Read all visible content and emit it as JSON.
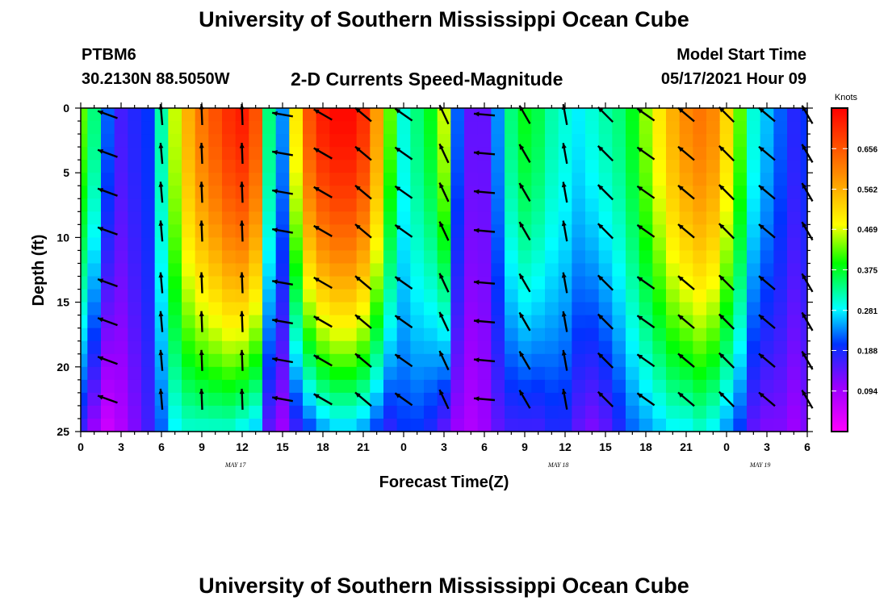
{
  "header": {
    "title": "University of Southern Mississippi Ocean Cube",
    "station_id": "PTBM6",
    "coordinates": "30.2130N  88.5050W",
    "plot_title": "2-D Currents Speed-Magnitude",
    "model_start_label": "Model Start Time",
    "model_start_value": "05/17/2021 Hour 09"
  },
  "footer": {
    "title": "University of Southern Mississippi Ocean Cube"
  },
  "chart_data": {
    "type": "heatmap",
    "title": "2-D Currents Speed-Magnitude",
    "xlabel": "Forecast Time(Z)",
    "ylabel": "Depth (ft)",
    "x_range_hours": [
      0,
      54
    ],
    "ylim": [
      0,
      25
    ],
    "x_ticks": [
      {
        "hour": 0,
        "label": "0"
      },
      {
        "hour": 3,
        "label": "3"
      },
      {
        "hour": 6,
        "label": "6"
      },
      {
        "hour": 9,
        "label": "9"
      },
      {
        "hour": 12,
        "label": "12"
      },
      {
        "hour": 15,
        "label": "15"
      },
      {
        "hour": 18,
        "label": "18"
      },
      {
        "hour": 21,
        "label": "21"
      },
      {
        "hour": 24,
        "label": "0"
      },
      {
        "hour": 27,
        "label": "3"
      },
      {
        "hour": 30,
        "label": "6"
      },
      {
        "hour": 33,
        "label": "9"
      },
      {
        "hour": 36,
        "label": "12"
      },
      {
        "hour": 39,
        "label": "15"
      },
      {
        "hour": 42,
        "label": "18"
      },
      {
        "hour": 45,
        "label": "21"
      },
      {
        "hour": 48,
        "label": "0"
      },
      {
        "hour": 51,
        "label": "3"
      },
      {
        "hour": 54,
        "label": "6"
      }
    ],
    "y_ticks": [
      {
        "depth": 0,
        "label": "0"
      },
      {
        "depth": 5,
        "label": "5"
      },
      {
        "depth": 10,
        "label": "10"
      },
      {
        "depth": 15,
        "label": "15"
      },
      {
        "depth": 20,
        "label": "20"
      },
      {
        "depth": 25,
        "label": "25"
      }
    ],
    "date_labels": [
      {
        "hour": 11.5,
        "label": "MAY 17"
      },
      {
        "hour": 35.5,
        "label": "MAY 18"
      },
      {
        "hour": 50.5,
        "label": "MAY 19"
      }
    ],
    "colorbar": {
      "units": "Knots",
      "min": 0.0,
      "max": 0.75,
      "ticks": [
        0.094,
        0.188,
        0.281,
        0.375,
        0.469,
        0.562,
        0.656
      ],
      "tick_labels": [
        "0.094",
        "0.188",
        "0.281",
        "0.375",
        "0.469",
        "0.562",
        "0.656"
      ]
    },
    "speed_profile": {
      "description": "Approximate current speed (knots) per forecast hour: surface value, bottom value",
      "hours": [
        0,
        1,
        2,
        3,
        4,
        5,
        6,
        7,
        8,
        9,
        10,
        11,
        12,
        13,
        14,
        15,
        16,
        17,
        18,
        19,
        20,
        21,
        22,
        23,
        24,
        25,
        26,
        27,
        28,
        29,
        30,
        31,
        32,
        33,
        34,
        35,
        36,
        37,
        38,
        39,
        40,
        41,
        42,
        43,
        44,
        45,
        46,
        47,
        48,
        49,
        50,
        51,
        52,
        53,
        54
      ],
      "surface": [
        0.42,
        0.34,
        0.22,
        0.16,
        0.18,
        0.2,
        0.32,
        0.46,
        0.56,
        0.62,
        0.66,
        0.7,
        0.72,
        0.66,
        0.34,
        0.24,
        0.5,
        0.66,
        0.72,
        0.74,
        0.74,
        0.7,
        0.58,
        0.42,
        0.3,
        0.34,
        0.38,
        0.46,
        0.22,
        0.14,
        0.14,
        0.24,
        0.34,
        0.38,
        0.36,
        0.32,
        0.3,
        0.28,
        0.3,
        0.32,
        0.34,
        0.38,
        0.44,
        0.5,
        0.56,
        0.6,
        0.62,
        0.6,
        0.52,
        0.42,
        0.3,
        0.26,
        0.22,
        0.18,
        0.2
      ],
      "bottom": [
        0.16,
        0.1,
        0.05,
        0.08,
        0.12,
        0.16,
        0.22,
        0.28,
        0.3,
        0.3,
        0.3,
        0.3,
        0.28,
        0.26,
        0.14,
        0.1,
        0.16,
        0.2,
        0.24,
        0.26,
        0.26,
        0.24,
        0.2,
        0.17,
        0.2,
        0.2,
        0.18,
        0.14,
        0.1,
        0.08,
        0.1,
        0.14,
        0.16,
        0.16,
        0.16,
        0.18,
        0.18,
        0.14,
        0.12,
        0.14,
        0.18,
        0.22,
        0.24,
        0.26,
        0.28,
        0.28,
        0.3,
        0.28,
        0.24,
        0.2,
        0.14,
        0.12,
        0.12,
        0.1,
        0.12
      ]
    },
    "current_vectors": {
      "description": "Direction of current (degrees, math convention: 0 = right, 90 = up) at each column",
      "columns": [
        {
          "hour": 2,
          "angle": 160
        },
        {
          "hour": 6,
          "angle": 95
        },
        {
          "hour": 9,
          "angle": 92
        },
        {
          "hour": 12,
          "angle": 92
        },
        {
          "hour": 15,
          "angle": 170
        },
        {
          "hour": 18,
          "angle": 150
        },
        {
          "hour": 21,
          "angle": 140
        },
        {
          "hour": 24,
          "angle": 145
        },
        {
          "hour": 27,
          "angle": 115
        },
        {
          "hour": 30,
          "angle": 175
        },
        {
          "hour": 33,
          "angle": 120
        },
        {
          "hour": 36,
          "angle": 100
        },
        {
          "hour": 39,
          "angle": 135
        },
        {
          "hour": 42,
          "angle": 145
        },
        {
          "hour": 45,
          "angle": 140
        },
        {
          "hour": 48,
          "angle": 135
        },
        {
          "hour": 51,
          "angle": 140
        },
        {
          "hour": 54,
          "angle": 120
        }
      ]
    }
  }
}
